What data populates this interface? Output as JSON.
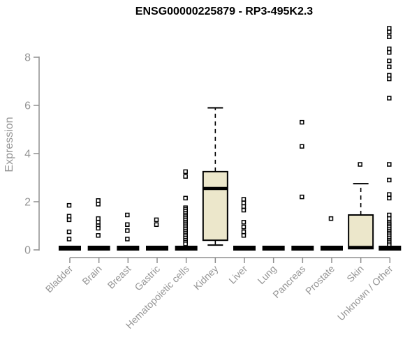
{
  "header": {
    "title": "ENSG00000225879 - RP3-495K2.3"
  },
  "colors": {
    "box_fill": "#ECE7CB",
    "box_stroke": "#000000",
    "median": "#000000",
    "outlier_stroke": "#000000",
    "axis_line": "#8F8F8F",
    "axis_text": "#959595",
    "title_text": "#000000",
    "background": "#FFFFFF"
  },
  "chart_data": {
    "type": "boxplot",
    "title": "ENSG00000225879 - RP3-495K2.3",
    "xlabel": "",
    "ylabel": "Expression",
    "ylim": [
      0,
      9.5
    ],
    "yticks": [
      0,
      2,
      4,
      6,
      8
    ],
    "grid": false,
    "legend": null,
    "categories": [
      "Bladder",
      "Brain",
      "Breast",
      "Gastric",
      "Hematopoietic cells",
      "Kidney",
      "Liver",
      "Lung",
      "Pancreas",
      "Prostate",
      "Skin",
      "Unknown / Other"
    ],
    "series": [
      {
        "category": "Bladder",
        "q1": 0,
        "median": 0,
        "q3": 0,
        "whisker_low": 0,
        "whisker_high": 0,
        "outliers": [
          1.85,
          1.4,
          1.25,
          0.75,
          0.45
        ]
      },
      {
        "category": "Brain",
        "q1": 0,
        "median": 0,
        "q3": 0,
        "whisker_low": 0,
        "whisker_high": 0,
        "outliers": [
          2.05,
          1.9,
          1.3,
          1.15,
          1.0,
          0.9,
          0.6
        ]
      },
      {
        "category": "Breast",
        "q1": 0,
        "median": 0,
        "q3": 0,
        "whisker_low": 0,
        "whisker_high": 0,
        "outliers": [
          1.45,
          1.05,
          0.8,
          0.45
        ]
      },
      {
        "category": "Gastric",
        "q1": 0,
        "median": 0,
        "q3": 0,
        "whisker_low": 0,
        "whisker_high": 0,
        "outliers": [
          1.25,
          1.05
        ]
      },
      {
        "category": "Hematopoietic cells",
        "q1": 0,
        "median": 0,
        "q3": 0,
        "whisker_low": 0,
        "whisker_high": 0,
        "outliers": [
          3.25,
          3.05,
          2.15,
          1.75,
          1.68,
          1.6,
          1.52,
          1.45,
          1.38,
          1.3,
          1.22,
          1.15,
          1.08,
          1.0,
          0.92,
          0.85,
          0.78,
          0.7,
          0.62,
          0.55,
          0.48,
          0.4,
          0.32,
          0.25
        ]
      },
      {
        "category": "Kidney",
        "q1": 0.4,
        "median": 2.55,
        "q3": 3.25,
        "whisker_low": 0.2,
        "whisker_high": 5.9,
        "outliers": []
      },
      {
        "category": "Liver",
        "q1": 0,
        "median": 0,
        "q3": 0,
        "whisker_low": 0,
        "whisker_high": 0,
        "outliers": [
          2.1,
          1.95,
          1.8,
          1.65,
          1.15,
          0.95,
          0.75,
          0.6
        ]
      },
      {
        "category": "Lung",
        "q1": 0,
        "median": 0,
        "q3": 0,
        "whisker_low": 0,
        "whisker_high": 0,
        "outliers": []
      },
      {
        "category": "Pancreas",
        "q1": 0,
        "median": 0,
        "q3": 0,
        "whisker_low": 0,
        "whisker_high": 0,
        "outliers": [
          5.3,
          4.3,
          2.2
        ]
      },
      {
        "category": "Prostate",
        "q1": 0,
        "median": 0,
        "q3": 0,
        "whisker_low": 0,
        "whisker_high": 0,
        "outliers": [
          1.3
        ]
      },
      {
        "category": "Skin",
        "q1": 0.05,
        "median": 0.1,
        "q3": 1.45,
        "whisker_low": null,
        "whisker_high": 2.75,
        "outliers": [
          3.55
        ]
      },
      {
        "category": "Unknown / Other",
        "q1": 0,
        "median": 0,
        "q3": 0,
        "whisker_low": 0,
        "whisker_high": 0,
        "outliers": [
          9.2,
          9.05,
          8.85,
          8.35,
          8.2,
          7.85,
          7.6,
          7.25,
          7.1,
          6.3,
          3.55,
          2.9,
          2.3,
          2.15,
          1.45,
          1.3,
          1.15,
          1.08,
          1.0,
          0.93,
          0.85,
          0.78,
          0.7,
          0.63,
          0.55,
          0.48,
          0.4,
          0.33,
          0.25,
          0.18
        ]
      }
    ]
  }
}
